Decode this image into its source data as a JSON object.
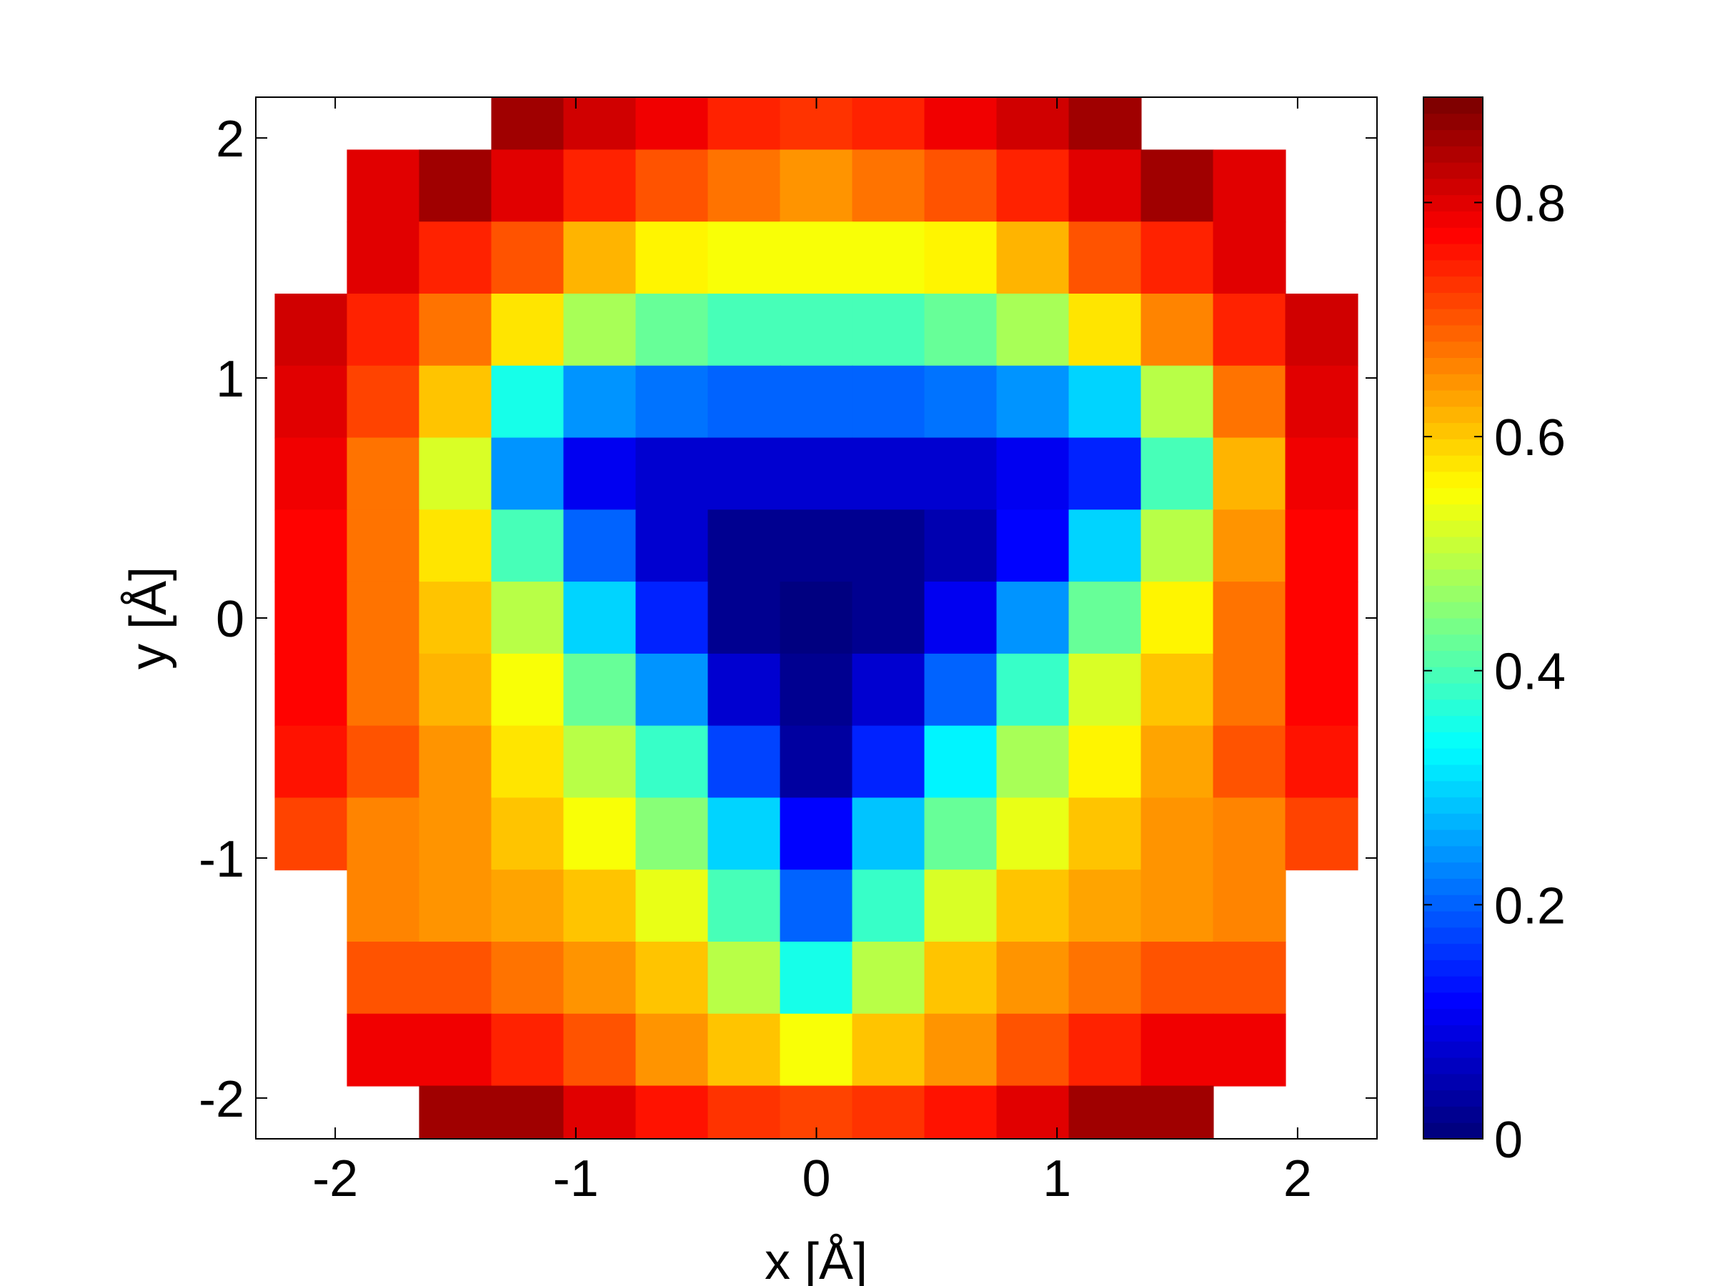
{
  "chart_data": {
    "type": "heatmap",
    "colormap": "jet",
    "xlabel": "x [Å]",
    "ylabel": "y [Å]",
    "xlim": [
      -2.33,
      2.33
    ],
    "ylim": [
      -2.17,
      2.17
    ],
    "xticks": [
      -2,
      -1,
      0,
      1,
      2
    ],
    "yticks": [
      -2,
      -1,
      0,
      1,
      2
    ],
    "clim": [
      0,
      0.89
    ],
    "cticks": [
      0,
      0.2,
      0.4,
      0.6,
      0.8
    ],
    "x": [
      -2.1,
      -1.8,
      -1.5,
      -1.2,
      -0.9,
      -0.6,
      -0.3,
      0,
      0.3,
      0.6,
      0.9,
      1.2,
      1.5,
      1.8,
      2.1
    ],
    "y": [
      2.1,
      1.8,
      1.5,
      1.2,
      0.9,
      0.6,
      0.3,
      0,
      -0.3,
      -0.6,
      -0.9,
      -1.2,
      -1.5,
      -1.8,
      -2.1
    ],
    "z": [
      [
        null,
        null,
        null,
        0.85,
        0.82,
        0.78,
        0.75,
        0.73,
        0.75,
        0.78,
        0.82,
        0.85,
        null,
        null,
        null
      ],
      [
        null,
        0.8,
        0.85,
        0.8,
        0.75,
        0.7,
        0.67,
        0.65,
        0.67,
        0.7,
        0.75,
        0.8,
        0.85,
        0.8,
        null
      ],
      [
        null,
        0.8,
        0.75,
        0.7,
        0.62,
        0.57,
        0.55,
        0.55,
        0.55,
        0.57,
        0.62,
        0.7,
        0.75,
        0.8,
        null
      ],
      [
        0.82,
        0.75,
        0.68,
        0.58,
        0.48,
        0.42,
        0.4,
        0.4,
        0.4,
        0.42,
        0.48,
        0.58,
        0.66,
        0.75,
        0.82
      ],
      [
        0.8,
        0.72,
        0.6,
        0.35,
        0.25,
        0.22,
        0.2,
        0.2,
        0.2,
        0.22,
        0.25,
        0.3,
        0.5,
        0.68,
        0.8
      ],
      [
        0.78,
        0.68,
        0.52,
        0.25,
        0.1,
        0.08,
        0.08,
        0.08,
        0.08,
        0.08,
        0.1,
        0.15,
        0.4,
        0.62,
        0.78
      ],
      [
        0.77,
        0.67,
        0.58,
        0.4,
        0.2,
        0.08,
        0.02,
        0.02,
        0.02,
        0.05,
        0.12,
        0.3,
        0.5,
        0.65,
        0.77
      ],
      [
        0.77,
        0.68,
        0.6,
        0.5,
        0.3,
        0.15,
        0.02,
        0.01,
        0.02,
        0.1,
        0.25,
        0.42,
        0.57,
        0.67,
        0.77
      ],
      [
        0.77,
        0.68,
        0.62,
        0.55,
        0.42,
        0.25,
        0.08,
        0.02,
        0.08,
        0.2,
        0.38,
        0.52,
        0.6,
        0.68,
        0.77
      ],
      [
        0.76,
        0.7,
        0.64,
        0.58,
        0.5,
        0.38,
        0.18,
        0.04,
        0.15,
        0.32,
        0.48,
        0.57,
        0.63,
        0.7,
        0.76
      ],
      [
        0.72,
        0.66,
        0.64,
        0.6,
        0.55,
        0.45,
        0.3,
        0.12,
        0.28,
        0.43,
        0.54,
        0.6,
        0.64,
        0.66,
        0.72
      ],
      [
        null,
        0.66,
        0.65,
        0.63,
        0.6,
        0.53,
        0.4,
        0.2,
        0.38,
        0.52,
        0.6,
        0.63,
        0.65,
        0.66,
        null
      ],
      [
        null,
        0.7,
        0.7,
        0.67,
        0.64,
        0.6,
        0.5,
        0.35,
        0.5,
        0.6,
        0.64,
        0.67,
        0.7,
        0.7,
        null
      ],
      [
        null,
        0.78,
        0.78,
        0.75,
        0.7,
        0.65,
        0.6,
        0.55,
        0.6,
        0.65,
        0.7,
        0.75,
        0.78,
        0.78,
        null
      ],
      [
        null,
        null,
        0.85,
        0.85,
        0.8,
        0.76,
        0.73,
        0.72,
        0.73,
        0.76,
        0.8,
        0.85,
        0.85,
        null,
        null
      ]
    ]
  }
}
